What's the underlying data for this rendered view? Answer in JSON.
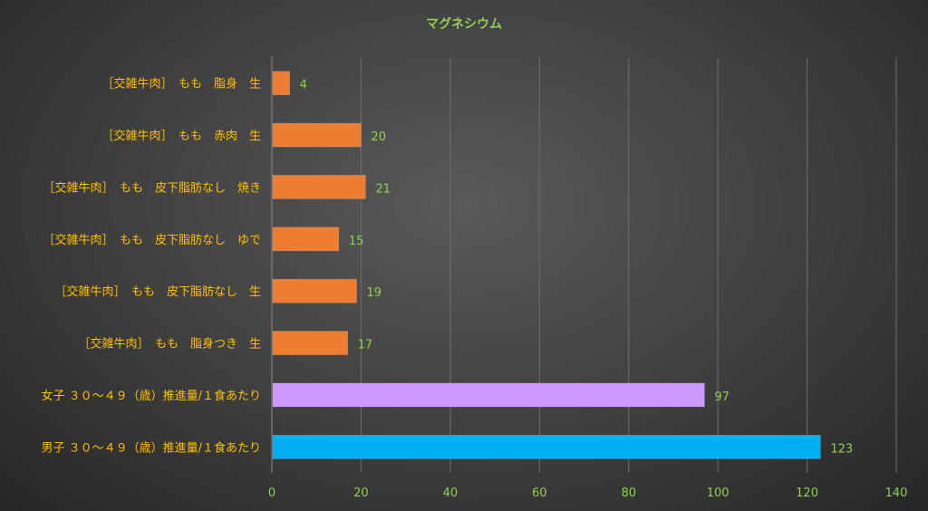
{
  "chart_data": {
    "type": "bar",
    "orientation": "horizontal",
    "title": "マグネシウム",
    "categories": [
      "［交雑牛肉］　もも　脂身　生",
      "［交雑牛肉］　もも　赤肉　生",
      "［交雑牛肉］　もも　皮下脂肪なし　焼き",
      "［交雑牛肉］　もも　皮下脂肪なし　ゆで",
      "［交雑牛肉］　もも　皮下脂肪なし　生",
      "［交雑牛肉］　もも　脂身つき　生",
      "女子 ３０～４９（歳）推進量/１食あたり",
      "男子 ３０～４９（歳）推進量/１食あたり"
    ],
    "values": [
      4,
      20,
      21,
      15,
      19,
      17,
      97,
      123
    ],
    "bar_colors": [
      "#ed7d31",
      "#ed7d31",
      "#ed7d31",
      "#ed7d31",
      "#ed7d31",
      "#ed7d31",
      "#cc99ff",
      "#00b0f0"
    ],
    "xlim": [
      0,
      140
    ],
    "x_ticks": [
      0,
      20,
      40,
      60,
      80,
      100,
      120,
      140
    ],
    "grid": true,
    "legend": "none",
    "colors": {
      "title": "#92d050",
      "category_labels": "#ffc000",
      "value_labels": "#92d050",
      "tick_labels": "#92d050"
    }
  }
}
